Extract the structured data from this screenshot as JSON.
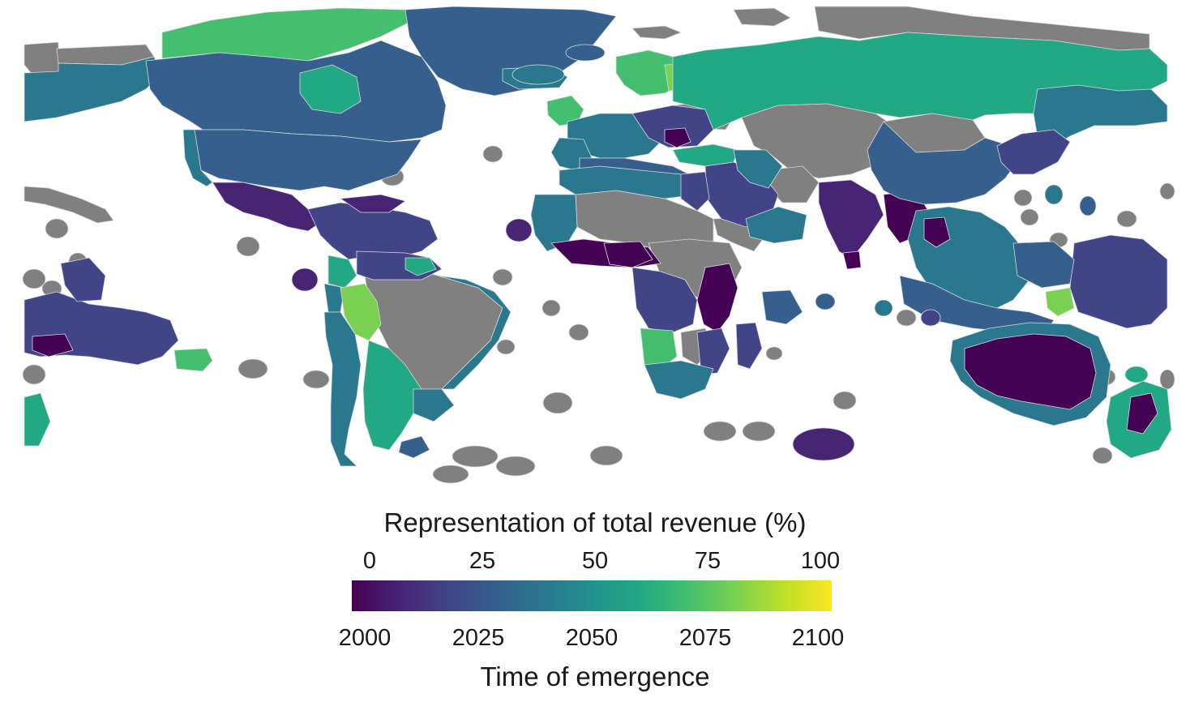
{
  "colors": {
    "no_data": "#808080",
    "ocean": "#ffffff",
    "border": "#d8d8d8",
    "viridis": [
      "#440154",
      "#482475",
      "#414487",
      "#355f8d",
      "#2a788e",
      "#21918c",
      "#22a884",
      "#44bf70",
      "#7ad151",
      "#bddf26",
      "#fde725"
    ]
  },
  "legend": {
    "top_title": "Representation of total revenue (%)",
    "top_ticks": [
      "0",
      "25",
      "50",
      "75",
      "100"
    ],
    "bottom_ticks": [
      "2000",
      "2025",
      "2050",
      "2075",
      "2100"
    ],
    "bottom_title": "Time of emergence"
  }
}
